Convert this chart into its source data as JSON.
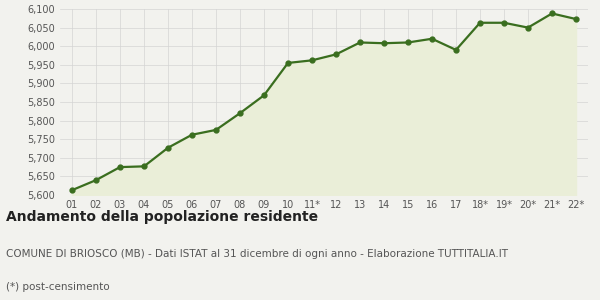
{
  "years": [
    "01",
    "02",
    "03",
    "04",
    "05",
    "06",
    "07",
    "08",
    "09",
    "10",
    "11*",
    "12",
    "13",
    "14",
    "15",
    "16",
    "17",
    "18*",
    "19*",
    "20*",
    "21*",
    "22*"
  ],
  "values": [
    5613,
    5640,
    5675,
    5677,
    5727,
    5762,
    5775,
    5820,
    5868,
    5955,
    5962,
    5978,
    6010,
    6008,
    6010,
    6020,
    5990,
    6063,
    6063,
    6050,
    6088,
    6073
  ],
  "line_color": "#3a6e1f",
  "fill_color": "#eaeed8",
  "marker": "o",
  "marker_size": 3.5,
  "linewidth": 1.6,
  "ylim": [
    5600,
    6100
  ],
  "yticks": [
    5600,
    5650,
    5700,
    5750,
    5800,
    5850,
    5900,
    5950,
    6000,
    6050,
    6100
  ],
  "background_color": "#f2f2ee",
  "plot_background": "#f2f2ee",
  "grid_color": "#d4d4d4",
  "title": "Andamento della popolazione residente",
  "subtitle": "COMUNE DI BRIOSCO (MB) - Dati ISTAT al 31 dicembre di ogni anno - Elaborazione TUTTITALIA.IT",
  "footnote": "(*) post-censimento",
  "title_fontsize": 10,
  "subtitle_fontsize": 7.5,
  "footnote_fontsize": 7.5,
  "tick_fontsize": 7
}
